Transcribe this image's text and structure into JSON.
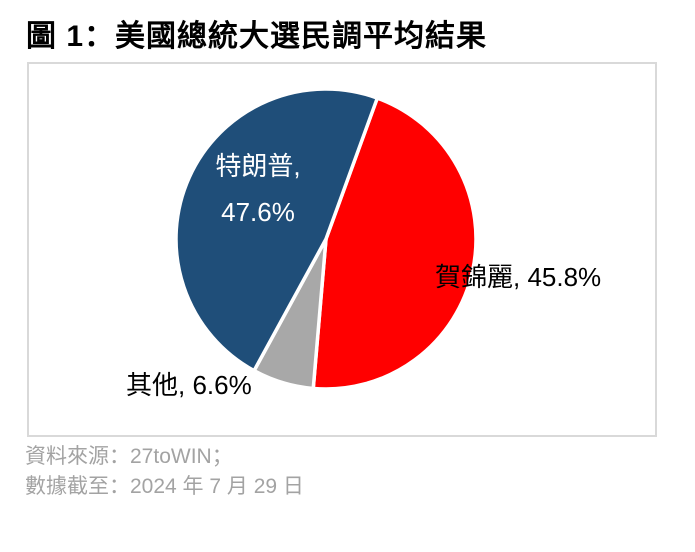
{
  "page": {
    "title": "圖 1：美國總統大選民調平均結果"
  },
  "chart_data": {
    "type": "pie",
    "title": "圖 1：美國總統大選民調平均結果",
    "start_angle_deg": 20,
    "direction": "clockwise",
    "slice_border_color": "#FFFFFF",
    "slices": [
      {
        "name": "賀錦麗",
        "value": 45.8,
        "color": "#FF0000",
        "label": "賀錦麗, 45.8%",
        "label_placement": "outside-right",
        "label_color": "#000000"
      },
      {
        "name": "其他",
        "value": 6.6,
        "color": "#A8A8A8",
        "label": "其他, 6.6%",
        "label_placement": "outside-bottom-left",
        "label_color": "#000000"
      },
      {
        "name": "特朗普",
        "value": 47.6,
        "color": "#1F4E79",
        "label": "特朗普, 47.6%",
        "label_lines": [
          "特朗普,",
          "47.6%"
        ],
        "label_placement": "inside",
        "label_color": "#FFFFFF"
      }
    ]
  },
  "footer": {
    "source_line": "資料來源：27toWIN；",
    "cutoff_line": "數據截至：2024 年 7 月 29 日"
  }
}
